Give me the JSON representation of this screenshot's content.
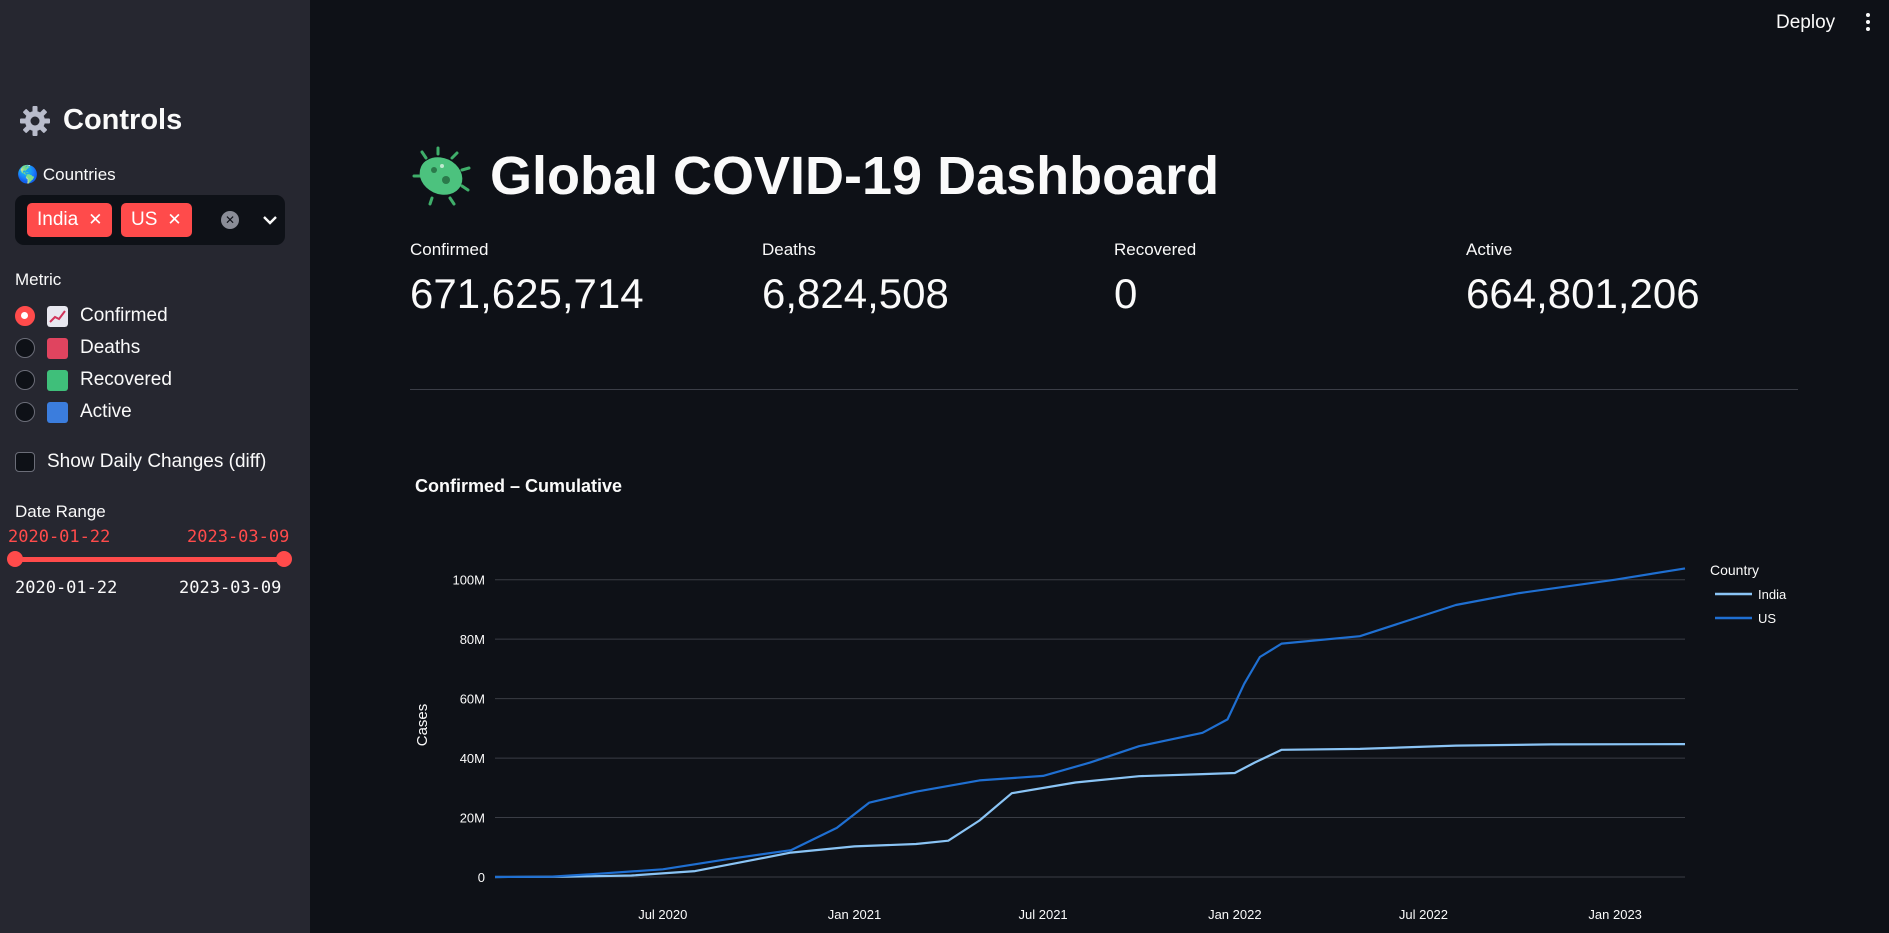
{
  "header": {
    "deploy_label": "Deploy",
    "menu_icon": "kebab-icon"
  },
  "sidebar": {
    "title": "Controls",
    "title_icon": "gear-icon",
    "countries_label": "🌎 Countries",
    "selected_countries": [
      "India",
      "US"
    ],
    "metric_label": "Metric",
    "metric_options": [
      {
        "label": "Confirmed",
        "icon": "chart-increasing-icon",
        "selected": true
      },
      {
        "label": "Deaths",
        "icon": "red-square-icon",
        "selected": false
      },
      {
        "label": "Recovered",
        "icon": "green-square-icon",
        "selected": false
      },
      {
        "label": "Active",
        "icon": "blue-square-icon",
        "selected": false
      }
    ],
    "diff_label": "Show Daily Changes (diff)",
    "diff_checked": false,
    "date_range_label": "Date Range",
    "date_start": "2020-01-22",
    "date_end": "2023-03-09",
    "range_min": "2020-01-22",
    "range_max": "2023-03-09"
  },
  "main": {
    "title": "Global COVID-19 Dashboard",
    "title_icon": "microbe-icon",
    "metrics": [
      {
        "label": "Confirmed",
        "value": "671,625,714"
      },
      {
        "label": "Deaths",
        "value": "6,824,508"
      },
      {
        "label": "Recovered",
        "value": "0"
      },
      {
        "label": "Active",
        "value": "664,801,206"
      }
    ],
    "chart_title": "Confirmed – Cumulative"
  },
  "colors": {
    "accent": "#ff4b4b",
    "india": "#8ac4f5",
    "us": "#1f6fd1",
    "background": "#0e1117",
    "sidebar": "#262730"
  },
  "chart_data": {
    "type": "line",
    "title": "Confirmed – Cumulative",
    "ylabel": "Cases",
    "xlabel": "",
    "ylim": [
      0,
      110000000
    ],
    "y_ticks": [
      0,
      20000000,
      40000000,
      60000000,
      80000000,
      100000000
    ],
    "y_tick_labels": [
      "0",
      "20M",
      "40M",
      "60M",
      "80M",
      "100M"
    ],
    "x_tick_labels": [
      "Jul 2020",
      "Jan 2021",
      "Jul 2021",
      "Jan 2022",
      "Jul 2022",
      "Jan 2023"
    ],
    "x_ticks": [
      "2020-07-01",
      "2021-01-01",
      "2021-07-01",
      "2022-01-01",
      "2022-07-01",
      "2023-01-01"
    ],
    "xlim": [
      "2020-01-22",
      "2023-03-09"
    ],
    "legend_title": "Country",
    "legend_position": "right",
    "grid": true,
    "series": [
      {
        "name": "India",
        "color": "#8ac4f5",
        "x": [
          "2020-01-22",
          "2020-04-01",
          "2020-06-01",
          "2020-08-01",
          "2020-09-15",
          "2020-11-01",
          "2021-01-01",
          "2021-03-01",
          "2021-04-01",
          "2021-05-01",
          "2021-06-01",
          "2021-08-01",
          "2021-10-01",
          "2021-12-01",
          "2022-01-01",
          "2022-01-20",
          "2022-02-15",
          "2022-05-01",
          "2022-08-01",
          "2022-11-01",
          "2023-03-09"
        ],
        "y": [
          0,
          100000,
          500000,
          2000000,
          5000000,
          8200000,
          10300000,
          11100000,
          12200000,
          19000000,
          28200000,
          31800000,
          33900000,
          34600000,
          35000000,
          38500000,
          42800000,
          43100000,
          44200000,
          44600000,
          44690000
        ]
      },
      {
        "name": "US",
        "color": "#1f6fd1",
        "x": [
          "2020-01-22",
          "2020-03-15",
          "2020-05-01",
          "2020-07-01",
          "2020-09-01",
          "2020-11-01",
          "2020-12-15",
          "2021-01-15",
          "2021-03-01",
          "2021-05-01",
          "2021-07-01",
          "2021-08-15",
          "2021-10-01",
          "2021-12-01",
          "2021-12-25",
          "2022-01-10",
          "2022-01-25",
          "2022-02-15",
          "2022-05-01",
          "2022-08-01",
          "2022-10-01",
          "2023-01-01",
          "2023-03-09"
        ],
        "y": [
          0,
          100000,
          1100000,
          2600000,
          6000000,
          9000000,
          16500000,
          25000000,
          28700000,
          32500000,
          34000000,
          38500000,
          44000000,
          48500000,
          53000000,
          65000000,
          74000000,
          78500000,
          81000000,
          91500000,
          95500000,
          100000000,
          103800000
        ]
      }
    ]
  }
}
